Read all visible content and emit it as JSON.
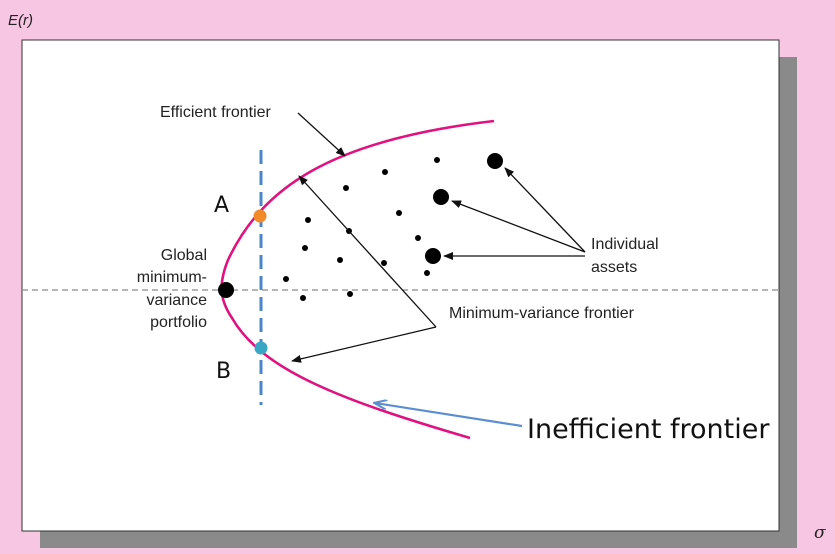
{
  "axes": {
    "y_label": "E(r)",
    "x_label": "σ"
  },
  "labels": {
    "efficient_frontier": "Efficient frontier",
    "point_a": "A",
    "point_b": "B",
    "gmv_line1": "Global",
    "gmv_line2": "minimum-",
    "gmv_line3": "variance",
    "gmv_line4": "portfolio",
    "individual_line1": "Individual",
    "individual_line2": "assets",
    "min_variance_frontier": "Minimum-variance frontier",
    "inefficient_frontier": "Inefficient frontier"
  },
  "colors": {
    "background": "#f7c6e2",
    "frontier": "#e0127f",
    "dashed_vertical": "#4a86c8",
    "point_a": "#f28a2a",
    "point_b": "#3aa6c4",
    "arrow_blue": "#5b8ed0",
    "shadow": "#8a8a8a"
  }
}
